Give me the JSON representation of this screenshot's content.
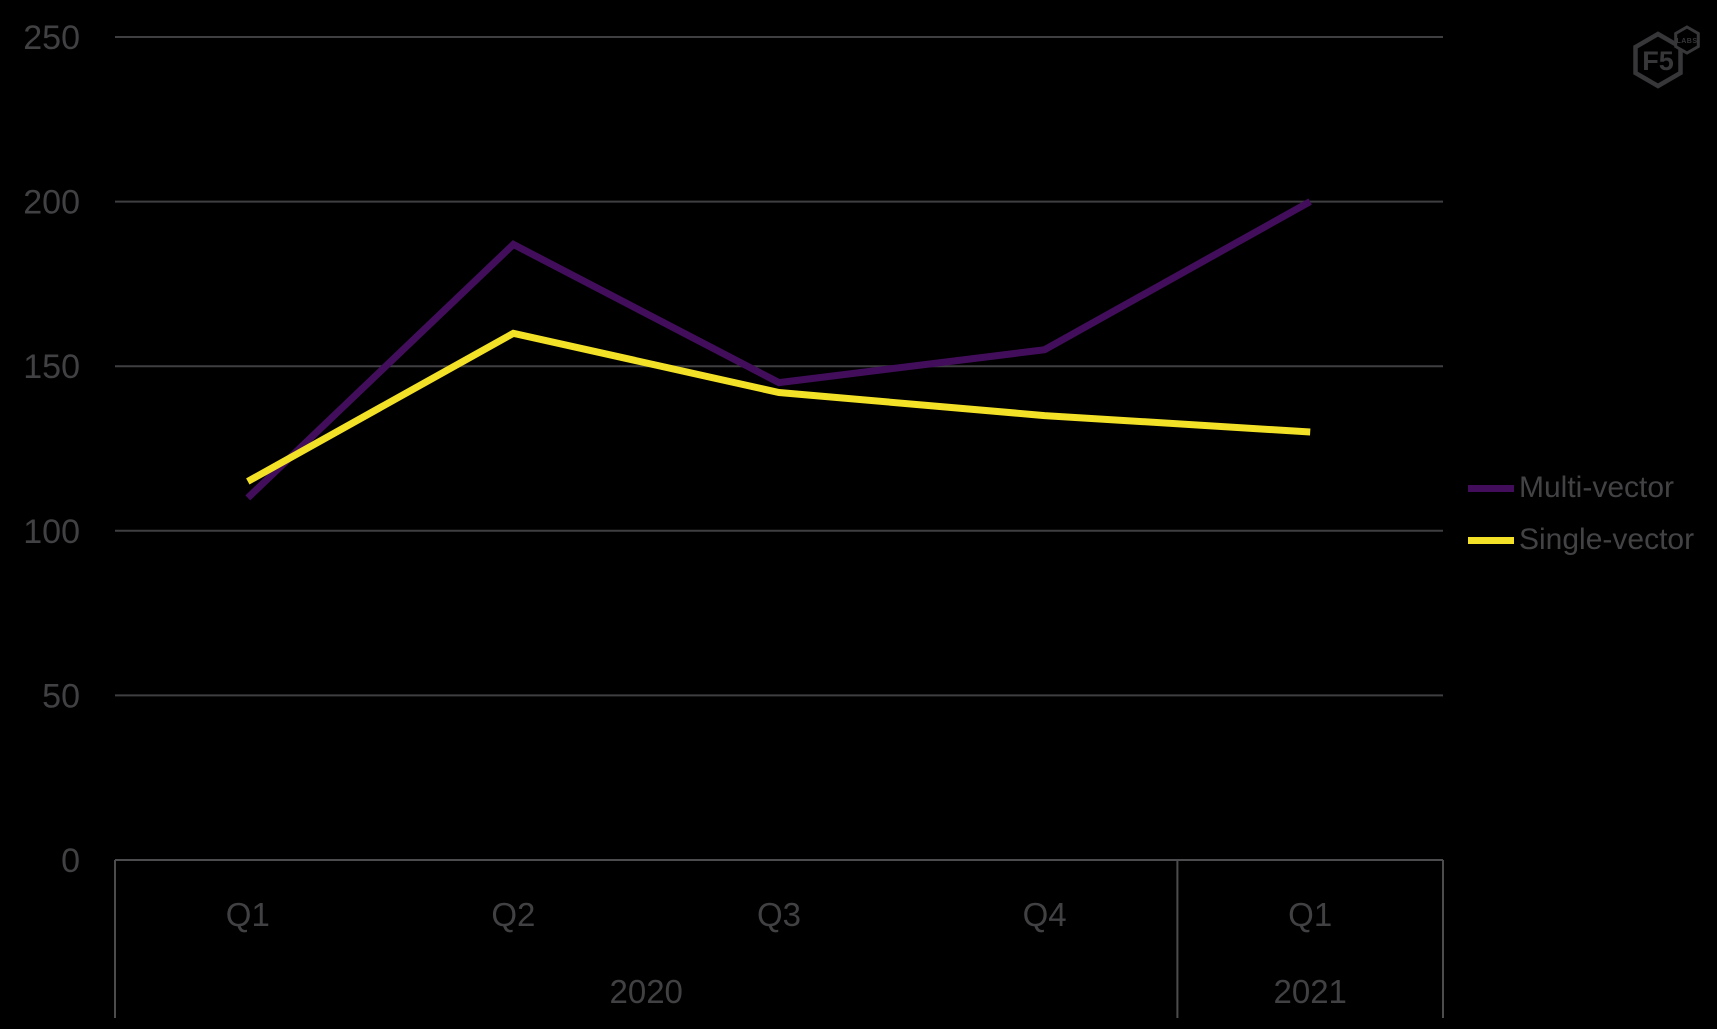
{
  "chart_data": {
    "type": "line",
    "title": "",
    "xlabel": "",
    "ylabel": "",
    "categories": [
      "Q1",
      "Q2",
      "Q3",
      "Q4",
      "Q1"
    ],
    "category_groups": [
      {
        "label": "2020",
        "span": 4
      },
      {
        "label": "2021",
        "span": 1
      }
    ],
    "series": [
      {
        "name": "Multi-vector",
        "color": "#420e5c",
        "values": [
          110,
          187,
          145,
          155,
          200
        ]
      },
      {
        "name": "Single-vector",
        "color": "#f2e126",
        "values": [
          115,
          160,
          142,
          135,
          130
        ]
      }
    ],
    "ylim": [
      0,
      250
    ],
    "yticks": [
      0,
      50,
      100,
      150,
      200,
      250
    ],
    "grid": "horizontal",
    "legend_position": "right"
  },
  "legend": {
    "items": [
      {
        "label": "Multi-vector"
      },
      {
        "label": "Single-vector"
      }
    ]
  },
  "logo": {
    "primary": "F5",
    "secondary": "LABS"
  },
  "colors": {
    "background": "#000000",
    "gridline": "#3f3f42",
    "axis_box": "#4c4c4f",
    "label_text": "#414144",
    "logo": "#37373a",
    "series_multi_vector": "#420e5c",
    "series_single_vector": "#f2e126"
  }
}
